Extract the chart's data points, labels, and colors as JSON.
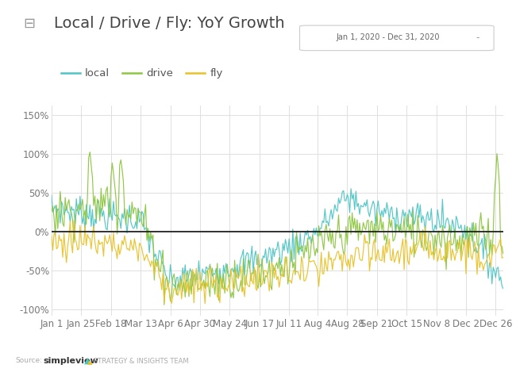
{
  "title": "Local / Drive / Fly: YoY Growth",
  "date_range_label": "Jan 1, 2020 - Dec 31, 2020",
  "legend_labels": [
    "local",
    "drive",
    "fly"
  ],
  "colors": {
    "local": "#4dc5c5",
    "drive": "#8dc63f",
    "fly": "#e8c227"
  },
  "x_tick_labels": [
    "Jan 1",
    "Jan 25",
    "Feb 18",
    "Mar 13",
    "Apr 6",
    "Apr 30",
    "May 24",
    "Jun 17",
    "Jul 11",
    "Aug 4",
    "Aug 28",
    "Sep 21",
    "Oct 15",
    "Nov 8",
    "Dec 2",
    "Dec 26"
  ],
  "y_tick_labels": [
    "-100%",
    "-50%",
    "0%",
    "50%",
    "100%",
    "150%"
  ],
  "y_ticks": [
    -100,
    -50,
    0,
    50,
    100,
    150
  ],
  "ylim": [
    -108,
    162
  ],
  "background_color": "#ffffff",
  "plot_bg_color": "#ffffff",
  "grid_color": "#e0e0e0",
  "zero_line_color": "#222222",
  "title_fontsize": 14,
  "axis_fontsize": 8.5,
  "legend_fontsize": 9.5
}
